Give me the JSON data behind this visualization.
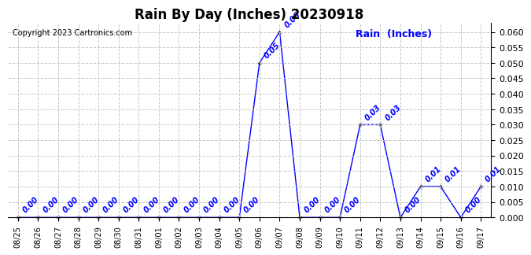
{
  "title": "Rain By Day (Inches) 20230918",
  "copyright_text": "Copyright 2023 Cartronics.com",
  "line_color": "blue",
  "label_color": "blue",
  "dates": [
    "08/25",
    "08/26",
    "08/27",
    "08/28",
    "08/29",
    "08/30",
    "08/31",
    "09/01",
    "09/02",
    "09/03",
    "09/04",
    "09/05",
    "09/06",
    "09/07",
    "09/08",
    "09/09",
    "09/10",
    "09/11",
    "09/12",
    "09/13",
    "09/14",
    "09/15",
    "09/16",
    "09/17"
  ],
  "values": [
    0.0,
    0.0,
    0.0,
    0.0,
    0.0,
    0.0,
    0.0,
    0.0,
    0.0,
    0.0,
    0.0,
    0.0,
    0.05,
    0.06,
    0.0,
    0.0,
    0.0,
    0.03,
    0.03,
    0.0,
    0.01,
    0.01,
    0.0,
    0.01
  ],
  "ylim": [
    0.0,
    0.063
  ],
  "yticks": [
    0.0,
    0.005,
    0.01,
    0.015,
    0.02,
    0.025,
    0.03,
    0.035,
    0.04,
    0.045,
    0.05,
    0.055,
    0.06
  ],
  "background_color": "#ffffff",
  "grid_color": "#c8c8c8",
  "title_fontsize": 12,
  "annotation_fontsize": 7,
  "legend_text": "Rain  (Inches)",
  "legend_color": "blue",
  "legend_fontsize": 9
}
